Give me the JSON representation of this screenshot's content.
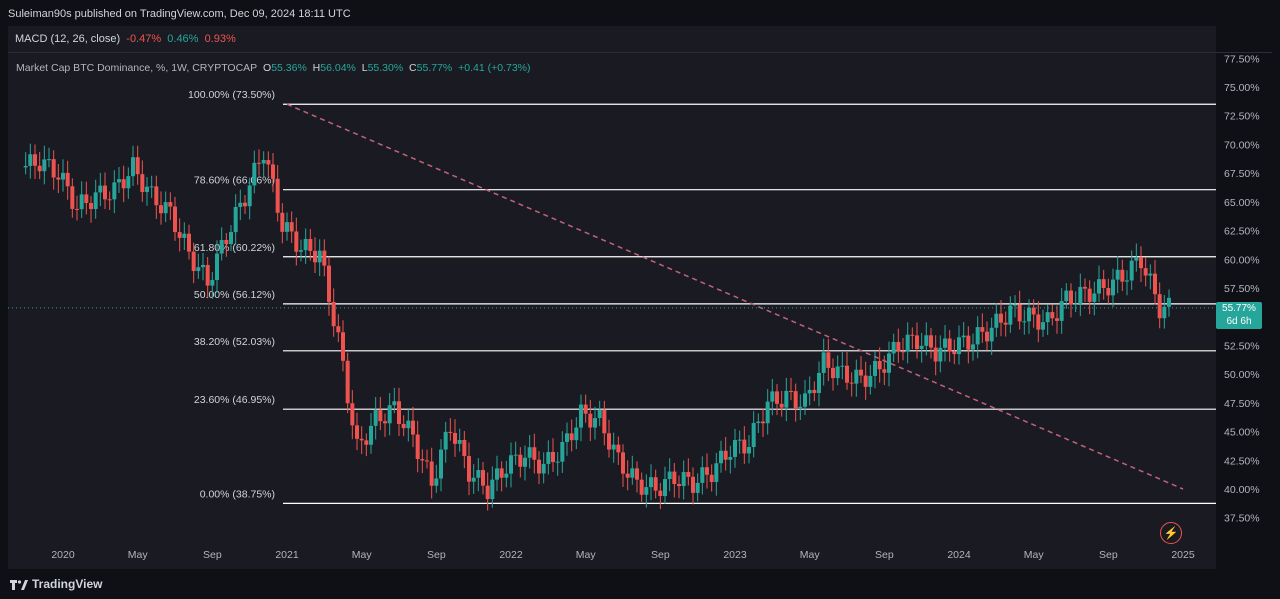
{
  "header": {
    "publisher": "Suleiman90s published on TradingView.com, Dec 09, 2024 18:11 UTC"
  },
  "macd": {
    "label": "MACD (12, 26, close)",
    "v1": "-0.47%",
    "v2": "0.46%",
    "v3": "0.93%"
  },
  "legend": {
    "title": "Market Cap BTC Dominance, %, 1W, CRYPTOCAP",
    "o_label": "O",
    "o": "55.36%",
    "h_label": "H",
    "h": "56.04%",
    "l_label": "L",
    "l": "55.30%",
    "c_label": "C",
    "c": "55.77%",
    "change": "+0.41 (+0.73%)"
  },
  "last_price": {
    "value": "55.77%",
    "countdown": "6d 6h"
  },
  "footer": {
    "logo": "TradingView"
  },
  "colors": {
    "up": "#26a69a",
    "down": "#ef5350",
    "fib": "#ffffff",
    "trend": "#c2627a",
    "background": "#1a1b22"
  },
  "chart_data": {
    "type": "candlestick",
    "y_ticks": [
      "77.50%",
      "75.00%",
      "72.50%",
      "70.00%",
      "67.50%",
      "65.00%",
      "62.50%",
      "60.00%",
      "57.50%",
      "55.00%",
      "52.50%",
      "50.00%",
      "47.50%",
      "45.00%",
      "42.50%",
      "40.00%",
      "37.50%"
    ],
    "y_tick_values": [
      77.5,
      75,
      72.5,
      70,
      67.5,
      65,
      62.5,
      60,
      57.5,
      55,
      52.5,
      50,
      47.5,
      45,
      42.5,
      40,
      37.5
    ],
    "x_ticks": [
      "2020",
      "May",
      "Sep",
      "2021",
      "May",
      "Sep",
      "2022",
      "May",
      "Sep",
      "2023",
      "May",
      "Sep",
      "2024",
      "May",
      "Sep",
      "2025"
    ],
    "x_tick_dates": [
      "2020-01",
      "2020-05",
      "2020-09",
      "2021-01",
      "2021-05",
      "2021-09",
      "2022-01",
      "2022-05",
      "2022-09",
      "2023-01",
      "2023-05",
      "2023-09",
      "2024-01",
      "2024-05",
      "2024-09",
      "2025-01"
    ],
    "fib_levels": [
      {
        "label": "100.00% (73.50%)",
        "value": 73.5
      },
      {
        "label": "78.60% (66.06%)",
        "value": 66.06
      },
      {
        "label": "61.80% (60.22%)",
        "value": 60.22
      },
      {
        "label": "50.00% (56.12%)",
        "value": 56.12
      },
      {
        "label": "38.20% (52.03%)",
        "value": 52.03
      },
      {
        "label": "23.60% (46.95%)",
        "value": 46.95
      },
      {
        "label": "0.00% (38.75%)",
        "value": 38.75
      }
    ],
    "trendline": {
      "from": {
        "date": "2021-01",
        "value": 73.5
      },
      "to": {
        "date": "2025-01",
        "value": 40.0
      }
    },
    "last_value": 55.77,
    "closes": [
      {
        "date": "2019-11",
        "value": 68.0
      },
      {
        "date": "2019-12",
        "value": 68.5
      },
      {
        "date": "2020-01",
        "value": 67.5
      },
      {
        "date": "2020-02",
        "value": 64.5
      },
      {
        "date": "2020-03",
        "value": 65.5
      },
      {
        "date": "2020-04",
        "value": 66.0
      },
      {
        "date": "2020-05",
        "value": 68.0
      },
      {
        "date": "2020-06",
        "value": 65.5
      },
      {
        "date": "2020-07",
        "value": 64.0
      },
      {
        "date": "2020-08",
        "value": 60.5
      },
      {
        "date": "2020-09",
        "value": 58.0
      },
      {
        "date": "2020-10",
        "value": 62.0
      },
      {
        "date": "2020-11",
        "value": 65.5
      },
      {
        "date": "2020-12",
        "value": 69.5
      },
      {
        "date": "2021-01",
        "value": 63.0
      },
      {
        "date": "2021-02",
        "value": 61.0
      },
      {
        "date": "2021-03",
        "value": 60.5
      },
      {
        "date": "2021-04",
        "value": 53.0
      },
      {
        "date": "2021-05",
        "value": 43.5
      },
      {
        "date": "2021-06",
        "value": 46.0
      },
      {
        "date": "2021-07",
        "value": 47.0
      },
      {
        "date": "2021-08",
        "value": 44.5
      },
      {
        "date": "2021-09",
        "value": 40.5
      },
      {
        "date": "2021-10",
        "value": 45.5
      },
      {
        "date": "2021-11",
        "value": 41.5
      },
      {
        "date": "2021-12",
        "value": 40.0
      },
      {
        "date": "2022-01",
        "value": 42.0
      },
      {
        "date": "2022-02",
        "value": 43.0
      },
      {
        "date": "2022-03",
        "value": 42.0
      },
      {
        "date": "2022-04",
        "value": 43.5
      },
      {
        "date": "2022-05",
        "value": 46.5
      },
      {
        "date": "2022-06",
        "value": 46.0
      },
      {
        "date": "2022-07",
        "value": 42.5
      },
      {
        "date": "2022-08",
        "value": 40.5
      },
      {
        "date": "2022-09",
        "value": 40.0
      },
      {
        "date": "2022-10",
        "value": 41.0
      },
      {
        "date": "2022-11",
        "value": 40.5
      },
      {
        "date": "2022-12",
        "value": 41.5
      },
      {
        "date": "2023-01",
        "value": 43.5
      },
      {
        "date": "2023-02",
        "value": 44.0
      },
      {
        "date": "2023-03",
        "value": 47.5
      },
      {
        "date": "2023-04",
        "value": 48.0
      },
      {
        "date": "2023-05",
        "value": 47.5
      },
      {
        "date": "2023-06",
        "value": 51.0
      },
      {
        "date": "2023-07",
        "value": 50.0
      },
      {
        "date": "2023-08",
        "value": 49.5
      },
      {
        "date": "2023-09",
        "value": 50.5
      },
      {
        "date": "2023-10",
        "value": 52.5
      },
      {
        "date": "2023-11",
        "value": 53.0
      },
      {
        "date": "2023-12",
        "value": 52.0
      },
      {
        "date": "2024-01",
        "value": 52.5
      },
      {
        "date": "2024-02",
        "value": 53.0
      },
      {
        "date": "2024-03",
        "value": 54.0
      },
      {
        "date": "2024-04",
        "value": 55.5
      },
      {
        "date": "2024-05",
        "value": 55.0
      },
      {
        "date": "2024-06",
        "value": 54.5
      },
      {
        "date": "2024-07",
        "value": 56.5
      },
      {
        "date": "2024-08",
        "value": 57.0
      },
      {
        "date": "2024-09",
        "value": 57.5
      },
      {
        "date": "2024-10",
        "value": 58.5
      },
      {
        "date": "2024-11",
        "value": 60.0
      },
      {
        "date": "2024-12",
        "value": 55.77
      }
    ]
  }
}
